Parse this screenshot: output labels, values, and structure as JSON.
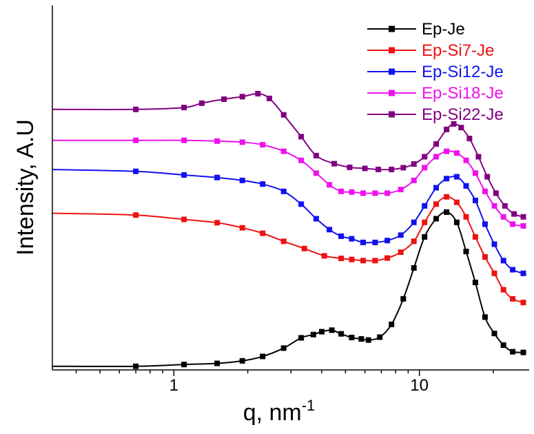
{
  "chart_data": {
    "type": "line",
    "title": "",
    "xlabel": "q, nm",
    "xlabel_superscript": "-1",
    "ylabel": "Intensity, A.U",
    "x_scale": "log",
    "xlim": [
      0.32,
      28
    ],
    "ylim": [
      0,
      100
    ],
    "y_ticks_labeled": false,
    "x_tick_labels": [
      "1",
      "10"
    ],
    "grid": false,
    "legend_position": "top-right",
    "series": [
      {
        "name": "Ep-Je",
        "color": "#000000",
        "x": [
          0.32,
          0.7,
          1.1,
          1.5,
          1.9,
          2.3,
          2.8,
          3.3,
          3.7,
          4.0,
          4.4,
          4.8,
          5.3,
          5.8,
          6.2,
          6.9,
          7.7,
          8.6,
          9.5,
          10.5,
          11.7,
          12.9,
          14.2,
          15.5,
          16.9,
          18.5,
          20.2,
          22.0,
          24.0,
          26.5
        ],
        "y": [
          1.0,
          1.0,
          1.5,
          1.8,
          2.5,
          3.7,
          6.0,
          8.8,
          9.7,
          10.5,
          10.9,
          9.9,
          8.9,
          8.5,
          8.2,
          9.0,
          12.5,
          19.5,
          28.0,
          36.5,
          41.5,
          43.3,
          40.5,
          32.5,
          24.0,
          14.5,
          10.0,
          6.8,
          5.0,
          4.8
        ]
      },
      {
        "name": "Ep-Si7-Je",
        "color": "#ee1111",
        "x": [
          0.32,
          0.7,
          1.1,
          1.5,
          1.9,
          2.3,
          2.8,
          3.4,
          4.1,
          4.8,
          5.3,
          5.9,
          6.6,
          7.4,
          8.4,
          9.5,
          10.5,
          11.7,
          12.9,
          14.2,
          15.5,
          16.9,
          18.5,
          20.2,
          22.0,
          24.0,
          26.5
        ],
        "y": [
          43.0,
          42.5,
          41.3,
          40.4,
          39.0,
          37.5,
          35.3,
          33.3,
          31.3,
          30.6,
          30.3,
          30.0,
          30.0,
          30.7,
          32.3,
          35.3,
          40.5,
          45.5,
          47.5,
          46.0,
          42.0,
          36.5,
          31.0,
          26.5,
          22.0,
          19.5,
          18.5
        ]
      },
      {
        "name": "Ep-Si12-Je",
        "color": "#1111ee",
        "x": [
          0.32,
          0.7,
          1.1,
          1.5,
          1.9,
          2.3,
          2.8,
          3.3,
          3.8,
          4.3,
          4.8,
          5.3,
          5.9,
          6.6,
          7.4,
          8.4,
          9.5,
          10.5,
          11.7,
          12.9,
          14.2,
          15.5,
          16.9,
          18.5,
          20.2,
          22.0,
          24.0,
          26.5
        ],
        "y": [
          55.0,
          54.5,
          53.5,
          52.8,
          52.0,
          51.0,
          49.0,
          45.5,
          41.5,
          38.5,
          36.7,
          36.0,
          35.0,
          35.0,
          35.5,
          37.0,
          40.5,
          45.0,
          50.0,
          52.5,
          53.0,
          50.5,
          46.5,
          40.0,
          34.5,
          30.0,
          27.5,
          26.5
        ]
      },
      {
        "name": "Ep-Si18-Je",
        "color": "#ee11ee",
        "x": [
          0.32,
          0.7,
          1.1,
          1.5,
          1.9,
          2.3,
          2.8,
          3.3,
          3.8,
          4.3,
          4.8,
          5.3,
          5.9,
          6.6,
          7.4,
          8.4,
          9.5,
          10.5,
          11.7,
          12.9,
          14.2,
          15.5,
          16.9,
          18.5,
          20.2,
          22.0,
          24.0,
          26.5
        ],
        "y": [
          63.0,
          63.0,
          63.0,
          62.8,
          62.5,
          61.8,
          60.0,
          57.5,
          54.0,
          50.8,
          49.0,
          48.8,
          48.5,
          48.5,
          48.5,
          49.5,
          52.0,
          55.5,
          58.5,
          60.0,
          59.5,
          57.5,
          54.0,
          49.0,
          45.0,
          42.0,
          40.0,
          39.5
        ]
      },
      {
        "name": "Ep-Si22-Je",
        "color": "#800080",
        "x": [
          0.32,
          0.7,
          1.1,
          1.3,
          1.6,
          1.9,
          2.2,
          2.45,
          2.8,
          3.3,
          3.8,
          4.5,
          5.2,
          6.0,
          6.8,
          7.7,
          8.6,
          9.5,
          10.5,
          11.7,
          12.9,
          13.8,
          14.8,
          16.0,
          17.4,
          18.9,
          20.5,
          22.3,
          24.3,
          26.5
        ],
        "y": [
          71.5,
          71.5,
          72.0,
          73.2,
          74.3,
          75.0,
          75.8,
          74.5,
          70.0,
          64.0,
          58.8,
          56.6,
          55.6,
          55.3,
          55.0,
          55.0,
          55.5,
          56.5,
          58.5,
          62.0,
          66.0,
          67.5,
          66.5,
          63.5,
          58.5,
          53.0,
          48.5,
          45.0,
          42.8,
          42.0
        ]
      }
    ]
  }
}
